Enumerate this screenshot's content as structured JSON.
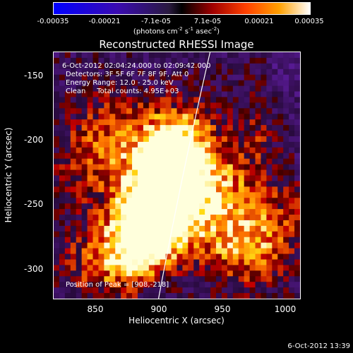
{
  "colorbar": {
    "ticks": [
      "-0.00035",
      "-0.00021",
      "-7.1e-05",
      "7.1e-05",
      "0.00021",
      "0.00035"
    ],
    "units_main": "(photons cm",
    "units_exp1": "-2",
    "units_mid": " s",
    "units_exp2": "-1",
    "units_end": " asec",
    "units_exp3": "-2",
    "units_close": ")"
  },
  "title": "Reconstructed RHESSI Image",
  "annotations": {
    "time_range": "6-Oct-2012 02:04:24.000 to 02:09:42.000",
    "detectors": "Detectors: 3F 5F 6F 7F 8F 9F, Att 0",
    "energy": "Energy Range: 12.0 - 25.0 keV",
    "clean": "Clean     Total counts: 4.95E+03",
    "peak": "Position of Peak = [908,-218]"
  },
  "axes": {
    "xlabel": "Heliocentric X (arcsec)",
    "ylabel": "Heliocentric Y (arcsec)",
    "xticks": [
      "850",
      "900",
      "950",
      "1000"
    ],
    "yticks": [
      "-150",
      "-200",
      "-250",
      "-300"
    ]
  },
  "footer": "6-Oct-2012 13:39",
  "colors": {
    "background": "#000000",
    "limb": "#ffffff"
  }
}
